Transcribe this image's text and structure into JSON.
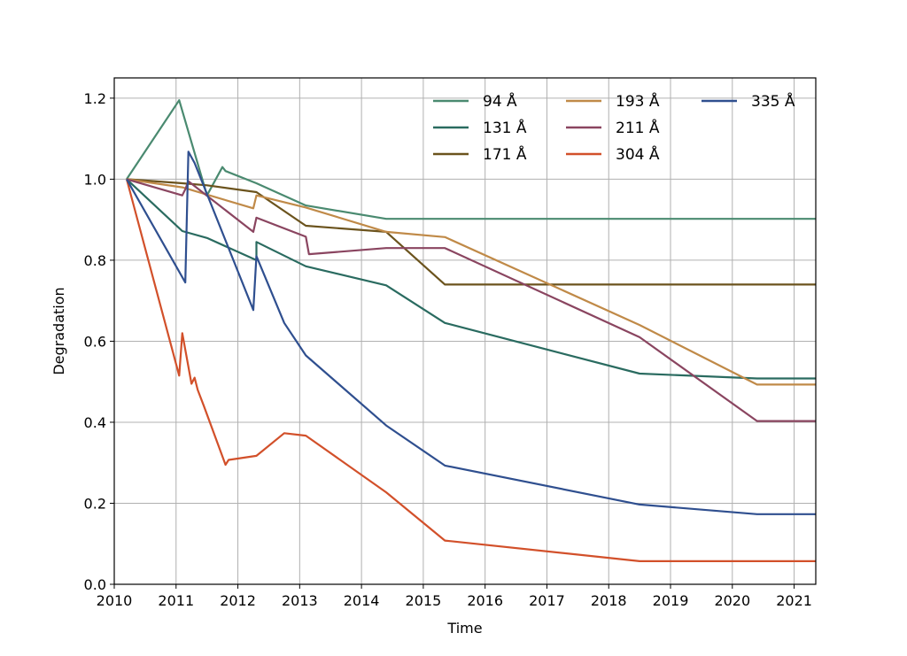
{
  "chart_data": {
    "type": "line",
    "xlabel": "Time",
    "ylabel": "Degradation",
    "xlim": [
      2010,
      2021.35
    ],
    "ylim": [
      0,
      1.25
    ],
    "xticks": [
      "2010",
      "2011",
      "2012",
      "2013",
      "2014",
      "2015",
      "2016",
      "2017",
      "2018",
      "2019",
      "2020",
      "2021"
    ],
    "yticks": [
      "0.0",
      "0.2",
      "0.4",
      "0.6",
      "0.8",
      "1.0",
      "1.2"
    ],
    "grid": true,
    "legend": {
      "position": "upper-right",
      "columns": 3
    },
    "series": [
      {
        "name": "94 Å",
        "color": "#4a8a70",
        "points": [
          [
            2010.2,
            1.0
          ],
          [
            2011.05,
            1.195
          ],
          [
            2011.5,
            0.96
          ],
          [
            2011.75,
            1.03
          ],
          [
            2011.8,
            1.02
          ],
          [
            2012.3,
            0.99
          ],
          [
            2013.1,
            0.935
          ],
          [
            2014.4,
            0.902
          ],
          [
            2021.35,
            0.902
          ]
        ]
      },
      {
        "name": "131 Å",
        "color": "#2a6b60",
        "points": [
          [
            2010.2,
            1.0
          ],
          [
            2011.1,
            0.872
          ],
          [
            2011.5,
            0.855
          ],
          [
            2012.3,
            0.8
          ],
          [
            2012.3,
            0.845
          ],
          [
            2012.5,
            0.83
          ],
          [
            2013.1,
            0.785
          ],
          [
            2014.4,
            0.738
          ],
          [
            2015.35,
            0.645
          ],
          [
            2018.5,
            0.52
          ],
          [
            2020.4,
            0.508
          ],
          [
            2021.35,
            0.508
          ]
        ]
      },
      {
        "name": "171 Å",
        "color": "#6b531d",
        "points": [
          [
            2010.2,
            1.0
          ],
          [
            2011.1,
            0.99
          ],
          [
            2011.5,
            0.985
          ],
          [
            2012.3,
            0.968
          ],
          [
            2013.1,
            0.885
          ],
          [
            2014.4,
            0.87
          ],
          [
            2015.35,
            0.74
          ],
          [
            2021.35,
            0.74
          ]
        ]
      },
      {
        "name": "193 Å",
        "color": "#c08a48",
        "points": [
          [
            2010.2,
            1.0
          ],
          [
            2011.1,
            0.98
          ],
          [
            2012.25,
            0.928
          ],
          [
            2012.3,
            0.96
          ],
          [
            2013.1,
            0.93
          ],
          [
            2014.4,
            0.87
          ],
          [
            2015.35,
            0.857
          ],
          [
            2018.5,
            0.64
          ],
          [
            2020.4,
            0.493
          ],
          [
            2021.35,
            0.493
          ]
        ]
      },
      {
        "name": "211 Å",
        "color": "#8a4560",
        "points": [
          [
            2010.2,
            1.0
          ],
          [
            2011.1,
            0.96
          ],
          [
            2011.15,
            0.975
          ],
          [
            2011.2,
            0.995
          ],
          [
            2012.25,
            0.87
          ],
          [
            2012.3,
            0.905
          ],
          [
            2013.1,
            0.858
          ],
          [
            2013.15,
            0.815
          ],
          [
            2014.4,
            0.83
          ],
          [
            2015.35,
            0.83
          ],
          [
            2018.5,
            0.61
          ],
          [
            2020.4,
            0.403
          ],
          [
            2021.35,
            0.403
          ]
        ]
      },
      {
        "name": "304 Å",
        "color": "#d2502a",
        "points": [
          [
            2010.2,
            1.0
          ],
          [
            2011.05,
            0.515
          ],
          [
            2011.1,
            0.62
          ],
          [
            2011.25,
            0.495
          ],
          [
            2011.3,
            0.51
          ],
          [
            2011.35,
            0.48
          ],
          [
            2011.45,
            0.44
          ],
          [
            2011.8,
            0.295
          ],
          [
            2011.85,
            0.307
          ],
          [
            2012.3,
            0.317
          ],
          [
            2012.75,
            0.373
          ],
          [
            2013.1,
            0.367
          ],
          [
            2014.4,
            0.227
          ],
          [
            2015.35,
            0.108
          ],
          [
            2018.5,
            0.057
          ],
          [
            2021.35,
            0.057
          ]
        ]
      },
      {
        "name": "335 Å",
        "color": "#2f4f8f",
        "points": [
          [
            2010.2,
            1.0
          ],
          [
            2011.15,
            0.745
          ],
          [
            2011.2,
            1.068
          ],
          [
            2011.3,
            1.04
          ],
          [
            2012.25,
            0.677
          ],
          [
            2012.3,
            0.81
          ],
          [
            2012.75,
            0.645
          ],
          [
            2013.1,
            0.565
          ],
          [
            2014.4,
            0.392
          ],
          [
            2015.35,
            0.293
          ],
          [
            2018.5,
            0.197
          ],
          [
            2020.4,
            0.173
          ],
          [
            2021.35,
            0.173
          ]
        ]
      }
    ]
  }
}
